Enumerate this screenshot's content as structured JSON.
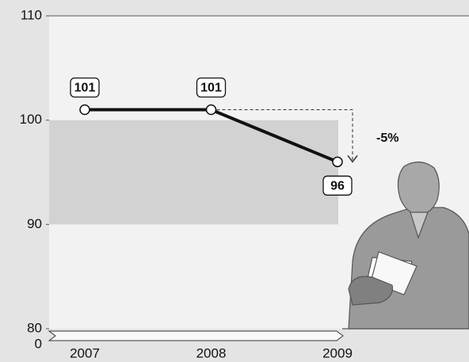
{
  "chart_data": {
    "type": "line",
    "categories": [
      "2007",
      "2008",
      "2009"
    ],
    "series": [
      {
        "values": [
          101,
          101,
          96
        ],
        "color": "#111111"
      }
    ],
    "ylim": [
      80,
      110
    ],
    "yticks": [
      80,
      90,
      100,
      110
    ],
    "y_break_tick": 0,
    "band": [
      90,
      100
    ],
    "annotation": "-5%"
  }
}
